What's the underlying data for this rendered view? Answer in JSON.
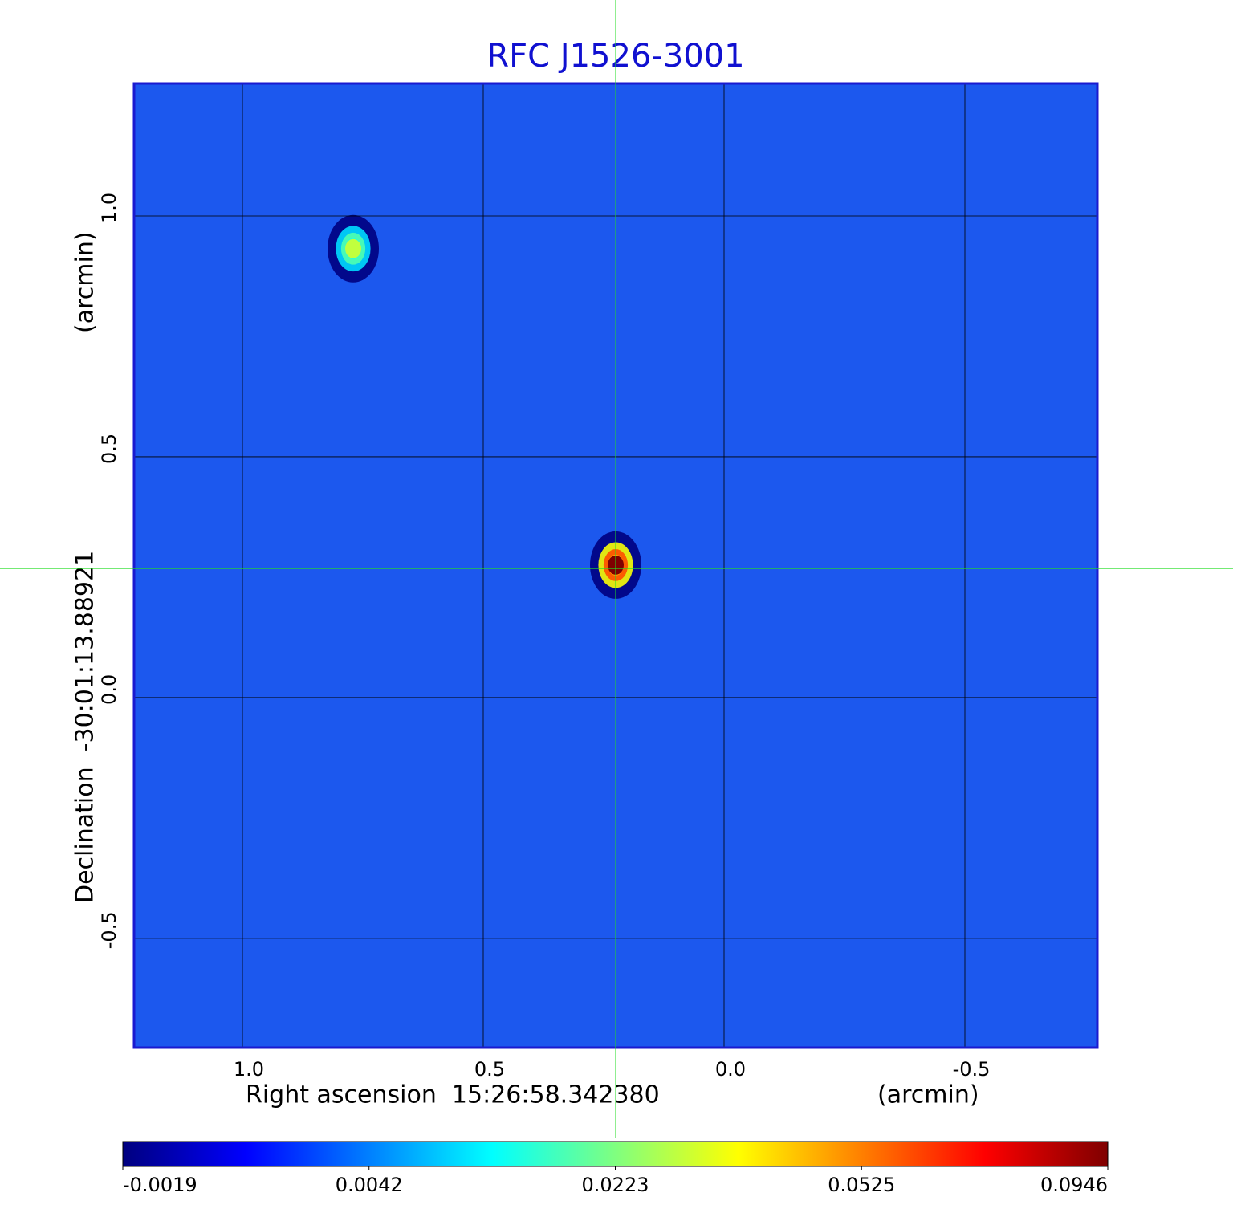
{
  "chart_data": {
    "type": "image",
    "title": "RFC J1526-3001",
    "x_label": "Right ascension  15:26:58.342380",
    "x_unit": "(arcmin)",
    "y_label": "Declination  -30:01:13.88921",
    "y_unit": "(arcmin)",
    "xlim": [
      1.225,
      -0.775
    ],
    "ylim": [
      -0.727,
      1.275
    ],
    "xticks": [
      {
        "value": 1,
        "label": "1.0"
      },
      0.5,
      {
        "value": 0,
        "label": "0.0"
      },
      -0.5
    ],
    "yticks": [
      {
        "value": 1,
        "label": "1.0"
      },
      0.5,
      {
        "value": 0,
        "label": "0.0"
      },
      -0.5
    ],
    "grid": true,
    "crosshair": {
      "x": 0.225,
      "y": 0.268
    },
    "sources": [
      {
        "x": 0.225,
        "y": 0.275,
        "value": 0.0946
      },
      {
        "x": 0.77,
        "y": 0.932,
        "value": 0.03
      }
    ],
    "colorbar_ticks": [
      -0.0019,
      0.0042,
      0.0223,
      0.0525,
      0.0946
    ]
  }
}
